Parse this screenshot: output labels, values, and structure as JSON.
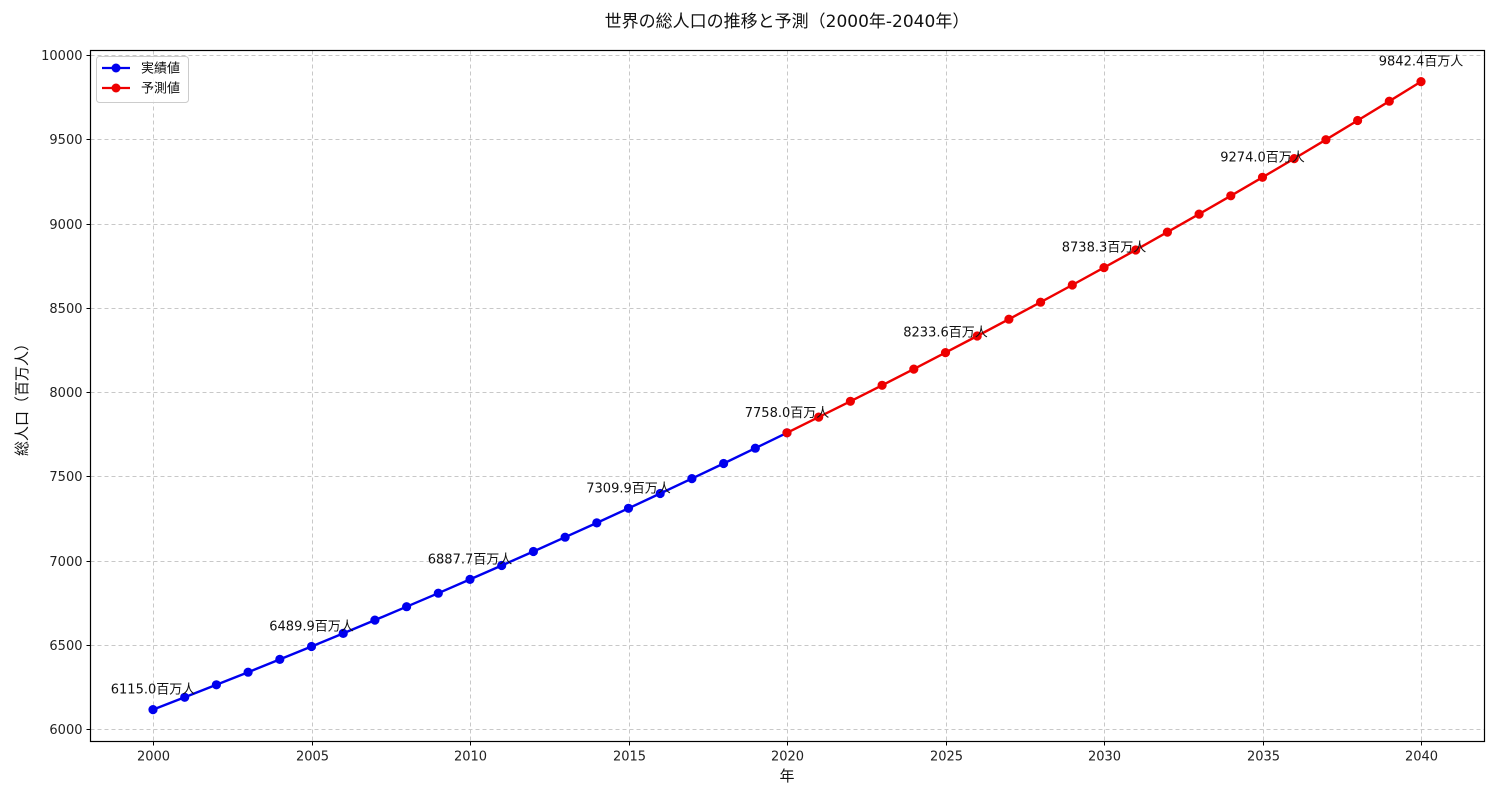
{
  "chart_data": {
    "type": "line",
    "title": "世界の総人口の推移と予測（2000年-2040年）",
    "xlabel": "年",
    "ylabel": "総人口（百万人）",
    "xlim": [
      1998,
      2042
    ],
    "ylim": [
      5950,
      10020
    ],
    "xticks": [
      2000,
      2005,
      2010,
      2015,
      2020,
      2025,
      2030,
      2035,
      2040
    ],
    "yticks": [
      6000,
      6500,
      7000,
      7500,
      8000,
      8500,
      9000,
      9500,
      10000
    ],
    "grid": true,
    "legend_position": "upper left",
    "series": [
      {
        "name": "実績値",
        "color": "#0000ee",
        "x": [
          2000,
          2001,
          2002,
          2003,
          2004,
          2005,
          2006,
          2007,
          2008,
          2009,
          2010,
          2011,
          2012,
          2013,
          2014,
          2015,
          2016,
          2017,
          2018,
          2019,
          2020
        ],
        "values": [
          6115.0,
          6188.2,
          6262.3,
          6337.2,
          6413.1,
          6489.9,
          6567.6,
          6646.2,
          6725.7,
          6806.2,
          6887.7,
          6970.1,
          7053.6,
          7138.0,
          7223.4,
          7309.9,
          7397.4,
          7486.0,
          7575.6,
          7666.3,
          7758.0
        ]
      },
      {
        "name": "予測値",
        "color": "#ee0000",
        "x": [
          2020,
          2021,
          2022,
          2023,
          2024,
          2025,
          2026,
          2027,
          2028,
          2029,
          2030,
          2031,
          2032,
          2033,
          2034,
          2035,
          2036,
          2037,
          2038,
          2039,
          2040
        ],
        "values": [
          7758.0,
          7850.9,
          7944.9,
          8040.0,
          8136.2,
          8233.6,
          8332.2,
          8431.9,
          8532.8,
          8635.0,
          8738.3,
          8842.9,
          8948.8,
          9055.9,
          9164.3,
          9274.0,
          9385.0,
          9497.3,
          9611.0,
          9726.1,
          9842.4
        ]
      }
    ],
    "annotations": [
      {
        "x": 2000,
        "y": 6115.0,
        "text": "6115.0百万人"
      },
      {
        "x": 2005,
        "y": 6489.9,
        "text": "6489.9百万人"
      },
      {
        "x": 2010,
        "y": 6887.7,
        "text": "6887.7百万人"
      },
      {
        "x": 2015,
        "y": 7309.9,
        "text": "7309.9百万人"
      },
      {
        "x": 2020,
        "y": 7758.0,
        "text": "7758.0百万人"
      },
      {
        "x": 2025,
        "y": 8233.6,
        "text": "8233.6百万人"
      },
      {
        "x": 2030,
        "y": 8738.3,
        "text": "8738.3百万人"
      },
      {
        "x": 2035,
        "y": 9274.0,
        "text": "9274.0百万人"
      },
      {
        "x": 2040,
        "y": 9842.4,
        "text": "9842.4百万人"
      }
    ]
  }
}
